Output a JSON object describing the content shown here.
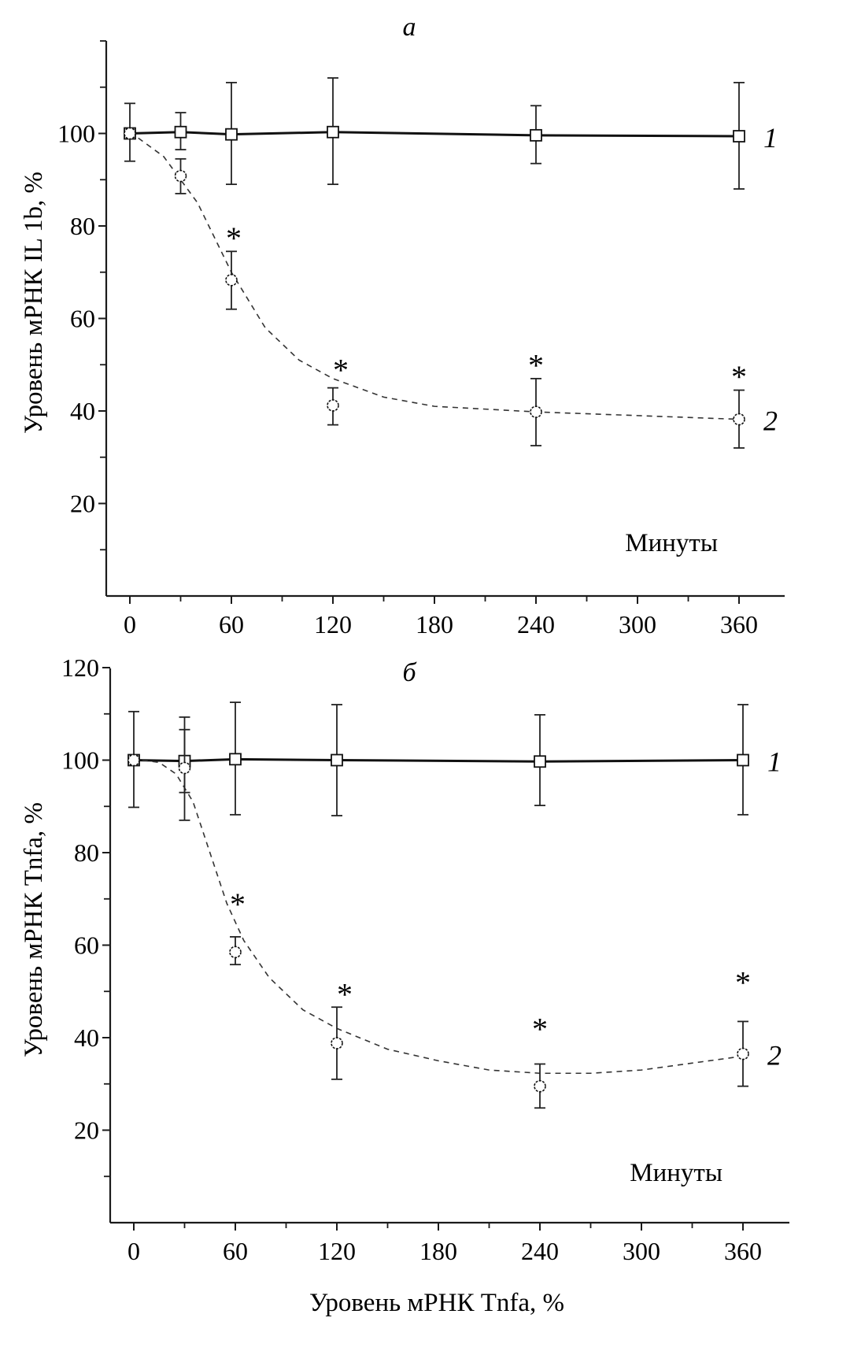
{
  "figure": {
    "bottom_caption": "Уровень мРНК Tnfa, %"
  },
  "chart_data": [
    {
      "type": "line",
      "panel_label": "а",
      "title": "",
      "xlabel": "Минуты",
      "ylabel": "Уровень мРНК IL 1b, %",
      "xlim": [
        -12,
        380
      ],
      "ylim": [
        0,
        120
      ],
      "x_ticks": [
        0,
        60,
        120,
        180,
        240,
        300,
        360
      ],
      "x_minor_ticks": [
        30,
        90,
        150,
        210,
        270,
        330
      ],
      "y_ticks": [
        20,
        40,
        60,
        80,
        100
      ],
      "y_tick_labels": [
        "20",
        "40",
        "60",
        "80",
        "100"
      ],
      "y_minor_ticks": [
        10,
        30,
        50,
        70,
        90,
        110,
        120
      ],
      "grid": false,
      "x": [
        0,
        30,
        60,
        120,
        240,
        360
      ],
      "series": [
        {
          "name": "1",
          "label": "1",
          "marker": "square",
          "line": "solid",
          "values": [
            100,
            100.3,
            99.8,
            100.3,
            99.6,
            99.4
          ],
          "err_upper": [
            106.5,
            104.5,
            111,
            112,
            106,
            111
          ],
          "err_lower": [
            94,
            96.5,
            89,
            89,
            93.5,
            88
          ]
        },
        {
          "name": "2",
          "label": "2",
          "marker": "circle",
          "line": "dashed",
          "values": [
            100,
            90.8,
            68.3,
            41.2,
            39.8,
            38.2
          ],
          "err_upper": [
            100,
            94.5,
            74.5,
            45,
            47,
            44.5
          ],
          "err_lower": [
            100,
            87,
            62,
            37,
            32.5,
            32
          ],
          "fit_curve": [
            [
              5,
              99
            ],
            [
              20,
              95
            ],
            [
              40,
              85
            ],
            [
              60,
              70
            ],
            [
              80,
              58
            ],
            [
              100,
              51
            ],
            [
              120,
              47
            ],
            [
              150,
              43
            ],
            [
              180,
              41
            ],
            [
              240,
              39.8
            ],
            [
              300,
              39
            ],
            [
              360,
              38.2
            ]
          ]
        }
      ],
      "significance_markers": [
        {
          "x": 60,
          "symbol": "*",
          "y_pos": 78.5
        },
        {
          "x": 120,
          "symbol": "*",
          "y_pos": 50
        },
        {
          "x": 240,
          "symbol": "*",
          "y_pos": 51
        },
        {
          "x": 360,
          "symbol": "*",
          "y_pos": 48.5
        }
      ]
    },
    {
      "type": "line",
      "panel_label": "б",
      "title": "",
      "xlabel": "Минуты",
      "ylabel": "Уровень мРНК Tnfa, %",
      "xlim": [
        -12,
        380
      ],
      "ylim": [
        0,
        120
      ],
      "x_ticks": [
        0,
        60,
        120,
        180,
        240,
        300,
        360
      ],
      "x_minor_ticks": [
        30,
        90,
        150,
        210,
        270,
        330
      ],
      "y_ticks": [
        20,
        40,
        60,
        80,
        100,
        120
      ],
      "y_tick_labels": [
        "20",
        "40",
        "60",
        "80",
        "100",
        "120"
      ],
      "y_minor_ticks": [
        10,
        30,
        50,
        70,
        90,
        110
      ],
      "grid": false,
      "x": [
        0,
        30,
        60,
        120,
        240,
        360
      ],
      "series": [
        {
          "name": "1",
          "label": "1",
          "marker": "square",
          "line": "solid",
          "values": [
            100,
            99.8,
            100.2,
            100,
            99.7,
            100
          ],
          "err_upper": [
            110.5,
            109.3,
            112.5,
            112,
            109.8,
            112
          ],
          "err_lower": [
            89.8,
            87,
            88.2,
            88,
            90.2,
            88.2
          ]
        },
        {
          "name": "2",
          "label": "2",
          "marker": "circle",
          "line": "dashed",
          "values": [
            100,
            98.3,
            58.5,
            38.8,
            29.5,
            36.5
          ],
          "err_upper": [
            100,
            106.6,
            61.8,
            46.6,
            34.3,
            43.5
          ],
          "err_lower": [
            100,
            93,
            55.8,
            31,
            24.8,
            29.5
          ],
          "fit_curve": [
            [
              5,
              100
            ],
            [
              15,
              99.5
            ],
            [
              25,
              97
            ],
            [
              35,
              91
            ],
            [
              45,
              80
            ],
            [
              55,
              69
            ],
            [
              65,
              61
            ],
            [
              80,
              53
            ],
            [
              100,
              46
            ],
            [
              120,
              42
            ],
            [
              150,
              37.5
            ],
            [
              180,
              35
            ],
            [
              210,
              33
            ],
            [
              240,
              32.3
            ],
            [
              270,
              32.3
            ],
            [
              300,
              33
            ],
            [
              330,
              34.5
            ],
            [
              360,
              36
            ]
          ]
        }
      ],
      "significance_markers": [
        {
          "x": 60,
          "symbol": "*",
          "y_pos": 70
        },
        {
          "x": 120,
          "symbol": "*",
          "y_pos": 50.5
        },
        {
          "x": 240,
          "symbol": "*",
          "y_pos": 43
        },
        {
          "x": 360,
          "symbol": "*",
          "y_pos": 53
        }
      ]
    }
  ]
}
